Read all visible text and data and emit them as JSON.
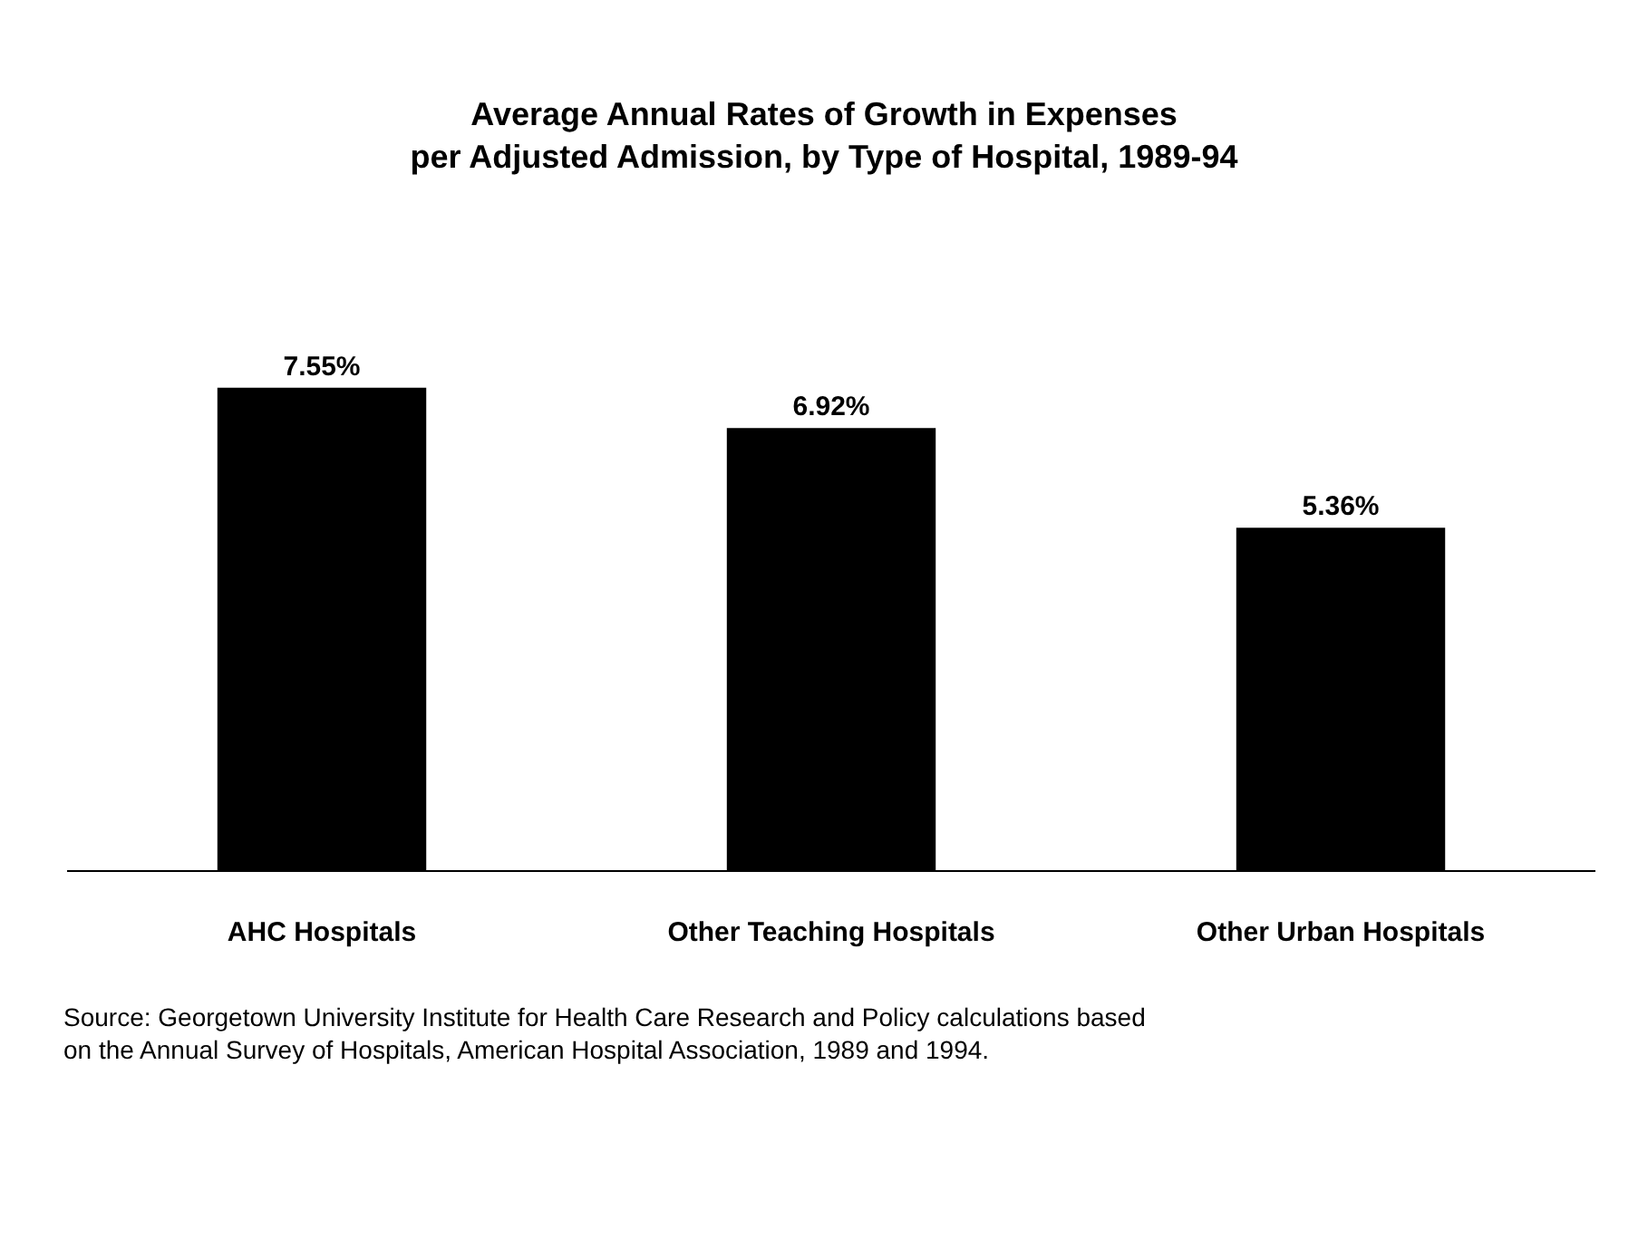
{
  "chart_data": {
    "type": "bar",
    "title": "Average Annual Rates of Growth in Expenses\nper Adjusted Admission, by Type of Hospital, 1989-94",
    "categories": [
      "AHC Hospitals",
      "Other Teaching Hospitals",
      "Other Urban Hospitals"
    ],
    "values": [
      7.55,
      6.92,
      5.36
    ],
    "value_labels": [
      "7.55%",
      "6.92%",
      "5.36%"
    ],
    "color": "#000000",
    "tick_labels": "x",
    "annotations": [
      "Source: Georgetown University Institute for Health Care Research and Policy calculations based\non the Annual Survey of Hospitals, American Hospital Association, 1989 and 1994."
    ]
  }
}
